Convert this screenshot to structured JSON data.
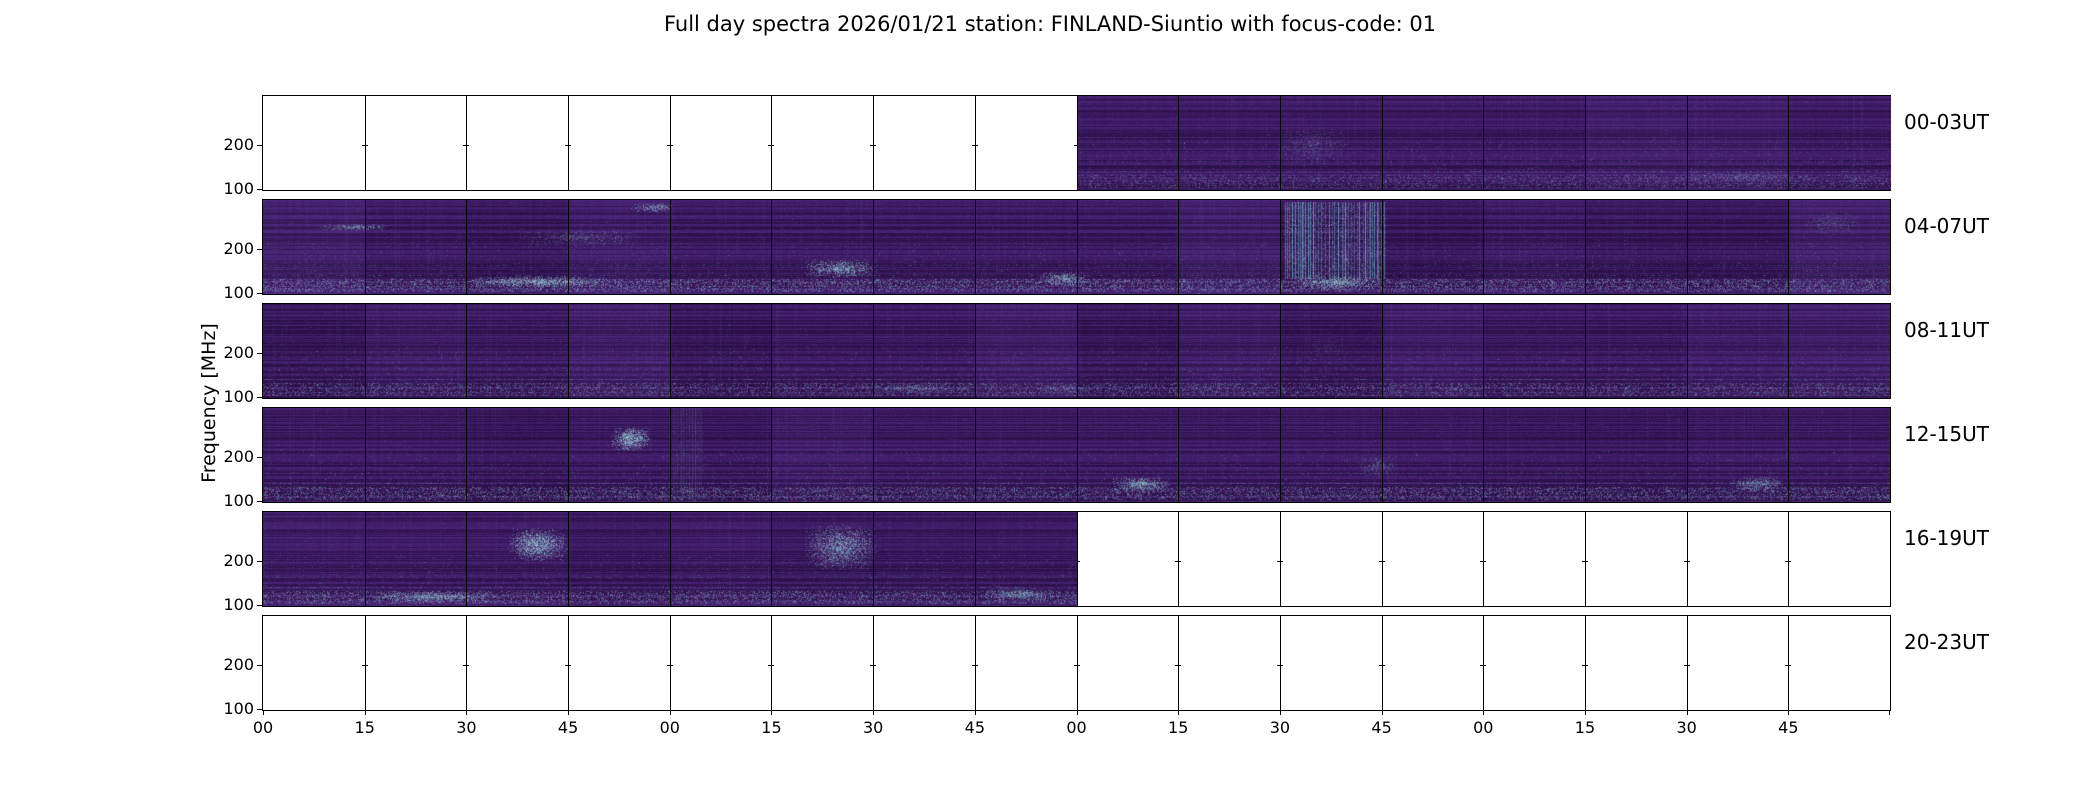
{
  "title": "Full day spectra 2026/01/21 station: FINLAND-Siuntio with focus-code: 01",
  "ylabel": "Frequency [MHz]",
  "yticks": [
    "200",
    "100"
  ],
  "xticks": [
    "00",
    "15",
    "30",
    "45",
    "00",
    "15",
    "30",
    "45",
    "00",
    "15",
    "30",
    "45",
    "00",
    "15",
    "30",
    "45"
  ],
  "palette": {
    "background": "#ffffff",
    "frame": "#000000",
    "spectrum_base": "#3a165c",
    "spectrum_bright_cyan": "#6fd6dc",
    "empty_panel": "#ffffff"
  },
  "rows": [
    {
      "label": "00-03UT",
      "seed": 101,
      "segments": 16,
      "data_start": 8,
      "data_end": 16,
      "band": 0.45,
      "features": [
        {
          "type": "blob",
          "x": 0.62,
          "y": 0.3,
          "w": 0.05,
          "h": 0.45,
          "i": 0.25
        },
        {
          "type": "blob",
          "x": 0.86,
          "y": 0.8,
          "w": 0.1,
          "h": 0.12,
          "i": 0.3
        }
      ]
    },
    {
      "label": "04-07UT",
      "seed": 202,
      "segments": 16,
      "data_start": 0,
      "data_end": 16,
      "band": 0.8,
      "features": [
        {
          "type": "blob",
          "x": 0.03,
          "y": 0.25,
          "w": 0.05,
          "h": 0.08,
          "i": 0.5
        },
        {
          "type": "blob",
          "x": 0.12,
          "y": 0.8,
          "w": 0.1,
          "h": 0.14,
          "i": 0.6
        },
        {
          "type": "blob",
          "x": 0.15,
          "y": 0.3,
          "w": 0.09,
          "h": 0.2,
          "i": 0.3
        },
        {
          "type": "blob",
          "x": 0.225,
          "y": 0.02,
          "w": 0.03,
          "h": 0.12,
          "i": 0.5
        },
        {
          "type": "blob",
          "x": 0.33,
          "y": 0.62,
          "w": 0.05,
          "h": 0.22,
          "i": 0.6
        },
        {
          "type": "blob",
          "x": 0.475,
          "y": 0.75,
          "w": 0.035,
          "h": 0.18,
          "i": 0.55
        },
        {
          "type": "vstripes",
          "x": 0.628,
          "y": 0.02,
          "w": 0.062,
          "h": 0.82,
          "i": 0.75
        },
        {
          "type": "blob",
          "x": 0.63,
          "y": 0.8,
          "w": 0.06,
          "h": 0.16,
          "i": 0.6
        },
        {
          "type": "blob",
          "x": 0.945,
          "y": 0.1,
          "w": 0.04,
          "h": 0.3,
          "i": 0.25
        }
      ]
    },
    {
      "label": "08-11UT",
      "seed": 303,
      "segments": 16,
      "data_start": 0,
      "data_end": 16,
      "band": 0.6,
      "features": [
        {
          "type": "blob",
          "x": 0.36,
          "y": 0.84,
          "w": 0.08,
          "h": 0.12,
          "i": 0.35
        },
        {
          "type": "blob",
          "x": 0.47,
          "y": 0.84,
          "w": 0.05,
          "h": 0.12,
          "i": 0.3
        },
        {
          "type": "blob",
          "x": 0.64,
          "y": 0.3,
          "w": 0.03,
          "h": 0.4,
          "i": 0.15
        }
      ]
    },
    {
      "label": "12-15UT",
      "seed": 404,
      "segments": 16,
      "data_start": 0,
      "data_end": 16,
      "band": 0.7,
      "features": [
        {
          "type": "blob",
          "x": 0.212,
          "y": 0.18,
          "w": 0.028,
          "h": 0.3,
          "i": 0.7
        },
        {
          "type": "vstripes",
          "x": 0.25,
          "y": 0.0,
          "w": 0.02,
          "h": 1.0,
          "i": 0.2
        },
        {
          "type": "blob",
          "x": 0.52,
          "y": 0.72,
          "w": 0.04,
          "h": 0.18,
          "i": 0.6
        },
        {
          "type": "blob",
          "x": 0.67,
          "y": 0.5,
          "w": 0.03,
          "h": 0.25,
          "i": 0.3
        },
        {
          "type": "blob",
          "x": 0.9,
          "y": 0.72,
          "w": 0.038,
          "h": 0.18,
          "i": 0.5
        }
      ]
    },
    {
      "label": "16-19UT",
      "seed": 505,
      "segments": 16,
      "data_start": 0,
      "data_end": 8,
      "band": 0.75,
      "features": [
        {
          "type": "blob",
          "x": 0.06,
          "y": 0.84,
          "w": 0.09,
          "h": 0.13,
          "i": 0.55
        },
        {
          "type": "blob",
          "x": 0.148,
          "y": 0.15,
          "w": 0.042,
          "h": 0.4,
          "i": 0.65
        },
        {
          "type": "blob",
          "x": 0.33,
          "y": 0.1,
          "w": 0.05,
          "h": 0.55,
          "i": 0.55
        },
        {
          "type": "blob",
          "x": 0.44,
          "y": 0.8,
          "w": 0.05,
          "h": 0.15,
          "i": 0.5
        }
      ]
    },
    {
      "label": "20-23UT",
      "seed": 606,
      "segments": 16,
      "data_start": 0,
      "data_end": 0,
      "band": 0.0,
      "features": []
    }
  ],
  "chart_data": {
    "type": "heatmap",
    "title": "Full day spectra 2026/01/21 station: FINLAND-Siuntio with focus-code: 01",
    "date": "2026/01/21",
    "station": "FINLAND-Siuntio",
    "focus_code": "01",
    "ylabel": "Frequency [MHz]",
    "y_tick_values_mhz": [
      100,
      200
    ],
    "y_scale": "log-like, 100 MHz at bottom, 200 MHz near mid-panel",
    "x_tick_minutes_per_hour": [
      "00",
      "15",
      "30",
      "45"
    ],
    "segments_per_row": 16,
    "segment_duration_min": 15,
    "row_time_ranges": [
      "00-03UT",
      "04-07UT",
      "08-11UT",
      "12-15UT",
      "16-19UT",
      "20-23UT"
    ],
    "data_presence": [
      {
        "row": "00-03UT",
        "filled_segments": "8-15 (approx 02:00-03:59 UT)",
        "empty_segments": "0-7 (white)"
      },
      {
        "row": "04-07UT",
        "filled_segments": "0-15 (all)",
        "empty_segments": "none"
      },
      {
        "row": "08-11UT",
        "filled_segments": "0-15 (all)",
        "empty_segments": "none"
      },
      {
        "row": "12-15UT",
        "filled_segments": "0-15 (all)",
        "empty_segments": "none"
      },
      {
        "row": "16-19UT",
        "filled_segments": "0-7 (approx 16:00-17:59 UT)",
        "empty_segments": "8-15 (white)"
      },
      {
        "row": "20-23UT",
        "filled_segments": "none",
        "empty_segments": "0-15 (all white)"
      }
    ],
    "colormap_description": "dark indigo/purple background with bright cyan interference bands; speckled bright band near 100 MHz bottom edge; prominent cyan vertical burst stripes in 04-07UT row (~06:30), cyan patches in 12-15UT (~13:00) and 16-19UT (~16:30, 17:20) rows",
    "legend": "none",
    "grid": "off"
  }
}
